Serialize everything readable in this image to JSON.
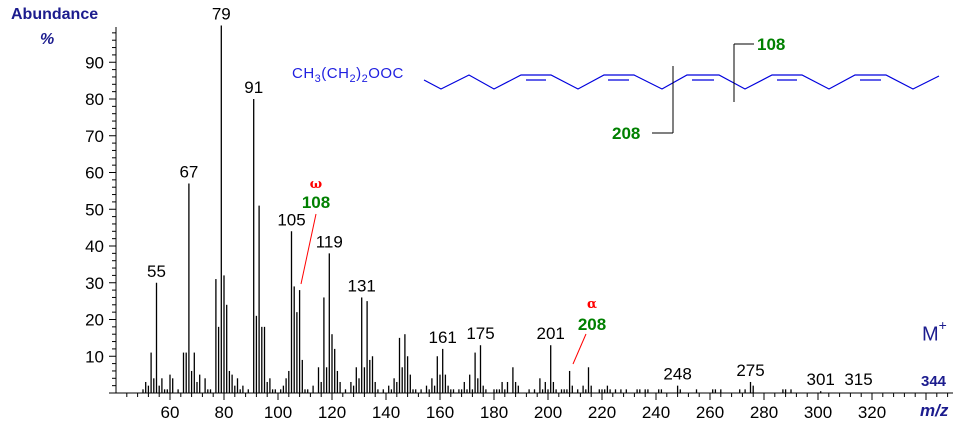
{
  "axes": {
    "y_title": "Abundance",
    "y_unit": "%",
    "x_title": "m/z",
    "y_ticks": [
      10,
      20,
      30,
      40,
      50,
      60,
      70,
      80,
      90
    ],
    "x_ticks": [
      60,
      80,
      100,
      120,
      140,
      160,
      180,
      200,
      220,
      240,
      260,
      280,
      300,
      320
    ]
  },
  "molecular_ion": {
    "label": "M",
    "charge": "+",
    "mz": "344"
  },
  "structure": {
    "formula_parts": [
      "CH",
      "3",
      "(CH",
      "2",
      ")",
      "2",
      "OOC"
    ],
    "fragment_108": "108",
    "fragment_208": "208"
  },
  "annotations": {
    "omega": {
      "symbol": "ω",
      "value": "108"
    },
    "alpha": {
      "symbol": "α",
      "value": "208"
    }
  },
  "colors": {
    "axis_text": "#1c1c8e",
    "structure": "#0000dd",
    "fragment": "#008000",
    "ion_symbol": "#ff0000",
    "peaks": "#000000"
  },
  "chart_data": {
    "type": "bar",
    "title": "",
    "xlabel": "m/z",
    "ylabel": "Abundance %",
    "xlim": [
      40,
      345
    ],
    "ylim": [
      0,
      100
    ],
    "peak_labels": [
      "55",
      "67",
      "79",
      "91",
      "105",
      "119",
      "131",
      "161",
      "175",
      "201",
      "248",
      "275",
      "301",
      "315"
    ],
    "peaks": [
      [
        50,
        1
      ],
      [
        51,
        3
      ],
      [
        52,
        2
      ],
      [
        53,
        11
      ],
      [
        54,
        4
      ],
      [
        55,
        30
      ],
      [
        56,
        2
      ],
      [
        57,
        4
      ],
      [
        58,
        1
      ],
      [
        59,
        1
      ],
      [
        60,
        5
      ],
      [
        61,
        4
      ],
      [
        63,
        1
      ],
      [
        65,
        11
      ],
      [
        66,
        11
      ],
      [
        67,
        57
      ],
      [
        68,
        6
      ],
      [
        69,
        11
      ],
      [
        70,
        3
      ],
      [
        71,
        5
      ],
      [
        73,
        4
      ],
      [
        74,
        1
      ],
      [
        75,
        1
      ],
      [
        77,
        31
      ],
      [
        78,
        18
      ],
      [
        79,
        100
      ],
      [
        80,
        32
      ],
      [
        81,
        24
      ],
      [
        82,
        6
      ],
      [
        83,
        5
      ],
      [
        84,
        2
      ],
      [
        85,
        4
      ],
      [
        86,
        1
      ],
      [
        87,
        2
      ],
      [
        89,
        1
      ],
      [
        91,
        80
      ],
      [
        92,
        21
      ],
      [
        93,
        51
      ],
      [
        94,
        18
      ],
      [
        95,
        18
      ],
      [
        96,
        3
      ],
      [
        97,
        4
      ],
      [
        98,
        1
      ],
      [
        99,
        1
      ],
      [
        101,
        1
      ],
      [
        102,
        2
      ],
      [
        103,
        4
      ],
      [
        104,
        6
      ],
      [
        105,
        44
      ],
      [
        106,
        29
      ],
      [
        107,
        22
      ],
      [
        108,
        28
      ],
      [
        109,
        9
      ],
      [
        110,
        1
      ],
      [
        111,
        1
      ],
      [
        113,
        2
      ],
      [
        115,
        7
      ],
      [
        116,
        3
      ],
      [
        117,
        26
      ],
      [
        118,
        7
      ],
      [
        119,
        38
      ],
      [
        120,
        16
      ],
      [
        121,
        12
      ],
      [
        122,
        6
      ],
      [
        123,
        3
      ],
      [
        125,
        1
      ],
      [
        127,
        3
      ],
      [
        128,
        2
      ],
      [
        129,
        7
      ],
      [
        130,
        4
      ],
      [
        131,
        26
      ],
      [
        132,
        7
      ],
      [
        133,
        25
      ],
      [
        134,
        9
      ],
      [
        135,
        10
      ],
      [
        136,
        3
      ],
      [
        137,
        1
      ],
      [
        139,
        1
      ],
      [
        141,
        2
      ],
      [
        142,
        1
      ],
      [
        143,
        4
      ],
      [
        144,
        3
      ],
      [
        145,
        15
      ],
      [
        146,
        7
      ],
      [
        147,
        16
      ],
      [
        148,
        10
      ],
      [
        149,
        5
      ],
      [
        150,
        1
      ],
      [
        151,
        1
      ],
      [
        153,
        1
      ],
      [
        155,
        2
      ],
      [
        156,
        1
      ],
      [
        157,
        4
      ],
      [
        158,
        2
      ],
      [
        159,
        10
      ],
      [
        160,
        5
      ],
      [
        161,
        12
      ],
      [
        162,
        5
      ],
      [
        163,
        2
      ],
      [
        164,
        1
      ],
      [
        165,
        1
      ],
      [
        167,
        1
      ],
      [
        168,
        1
      ],
      [
        169,
        3
      ],
      [
        170,
        1
      ],
      [
        171,
        5
      ],
      [
        172,
        1
      ],
      [
        173,
        11
      ],
      [
        174,
        4
      ],
      [
        175,
        13
      ],
      [
        176,
        2
      ],
      [
        177,
        1
      ],
      [
        180,
        1
      ],
      [
        181,
        1
      ],
      [
        182,
        1
      ],
      [
        183,
        3
      ],
      [
        184,
        1
      ],
      [
        185,
        3
      ],
      [
        187,
        7
      ],
      [
        188,
        3
      ],
      [
        189,
        2
      ],
      [
        193,
        1
      ],
      [
        195,
        1
      ],
      [
        197,
        4
      ],
      [
        198,
        1
      ],
      [
        199,
        3
      ],
      [
        200,
        1
      ],
      [
        201,
        13
      ],
      [
        202,
        3
      ],
      [
        203,
        1
      ],
      [
        205,
        1
      ],
      [
        206,
        1
      ],
      [
        207,
        1
      ],
      [
        208,
        6
      ],
      [
        209,
        2
      ],
      [
        211,
        1
      ],
      [
        213,
        2
      ],
      [
        214,
        1
      ],
      [
        215,
        7
      ],
      [
        216,
        2
      ],
      [
        219,
        1
      ],
      [
        220,
        1
      ],
      [
        221,
        1
      ],
      [
        222,
        2
      ],
      [
        223,
        1
      ],
      [
        225,
        1
      ],
      [
        227,
        1
      ],
      [
        229,
        1
      ],
      [
        233,
        1
      ],
      [
        234,
        1
      ],
      [
        236,
        1
      ],
      [
        237,
        1
      ],
      [
        241,
        1
      ],
      [
        242,
        1
      ],
      [
        248,
        2
      ],
      [
        249,
        1
      ],
      [
        255,
        1
      ],
      [
        261,
        1
      ],
      [
        262,
        1
      ],
      [
        264,
        1
      ],
      [
        271,
        1
      ],
      [
        273,
        1
      ],
      [
        275,
        3
      ],
      [
        276,
        2
      ],
      [
        287,
        1
      ],
      [
        288,
        1
      ],
      [
        290,
        1
      ],
      [
        301,
        0.5
      ]
    ]
  }
}
